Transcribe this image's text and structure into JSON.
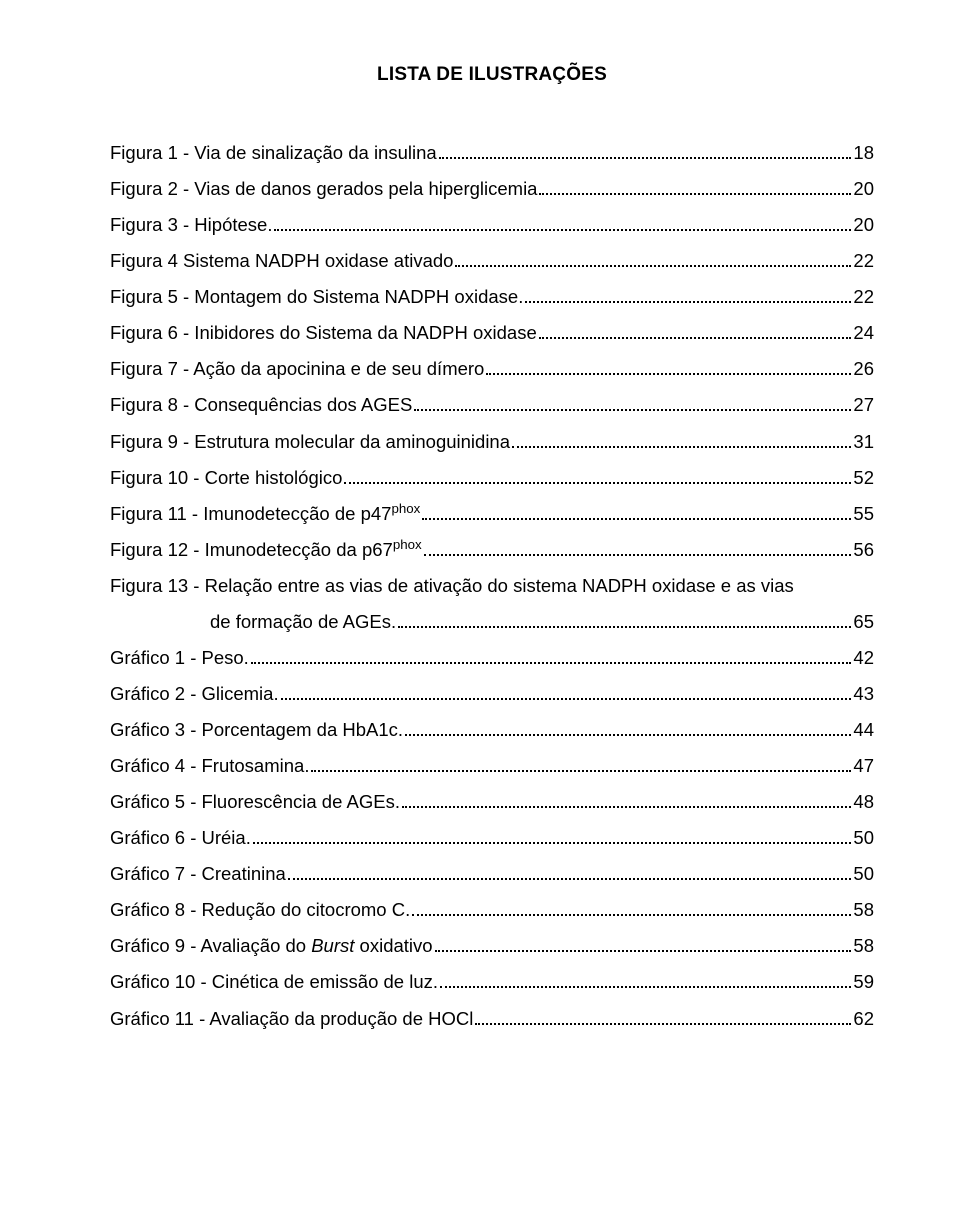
{
  "title": "LISTA DE ILUSTRAÇÕES",
  "entries": [
    {
      "label": "Figura 1 -  Via de sinalização da insulina",
      "page": "18"
    },
    {
      "label": "Figura 2 -  Vias de danos gerados pela hiperglicemia",
      "page": "20"
    },
    {
      "label": "Figura 3 -  Hipótese.",
      "page": "20"
    },
    {
      "label": "Figura 4   Sistema NADPH oxidase ativado",
      "page": "22"
    },
    {
      "label": "Figura 5 -  Montagem do Sistema NADPH oxidase.",
      "page": "22"
    },
    {
      "label": "Figura 6 -  Inibidores do Sistema da NADPH oxidase",
      "page": "24"
    },
    {
      "label": "Figura 7 -  Ação da apocinina e de seu dímero",
      "page": "26"
    },
    {
      "label": "Figura 8 -  Consequências dos AGES",
      "page": "27"
    },
    {
      "label": "Figura 9 -  Estrutura molecular da aminoguinidina",
      "page": "31"
    },
    {
      "label": "Figura 10 - Corte histológico",
      "page": "52"
    },
    {
      "label": "Figura 11 - Imunodetecção de p47",
      "sup": "phox",
      "page": "55"
    },
    {
      "label": "Figura 12 - Imunodetecção da p67",
      "sup": "phox",
      "page": "56"
    },
    {
      "label": "Figura 13 - Relação entre as vias de ativação do sistema NADPH oxidase e as vias",
      "page": ""
    },
    {
      "cont": true,
      "label": "de formação de AGEs. ",
      "page": "65"
    },
    {
      "label": "Gráfico 1 -  Peso. ",
      "page": "42"
    },
    {
      "label": "Gráfico 2 -  Glicemia.",
      "page": "43"
    },
    {
      "label": "Gráfico 3 -  Porcentagem da HbA1c.",
      "page": "44"
    },
    {
      "label": "Gráfico 4 -  Frutosamina.",
      "page": "47"
    },
    {
      "label": "Gráfico 5 -  Fluorescência de AGEs. ",
      "page": "48"
    },
    {
      "label": "Gráfico 6 -  Uréia. ",
      "page": "50"
    },
    {
      "label": "Gráfico 7 -  Creatinina",
      "page": "50"
    },
    {
      "label": "Gráfico 8 -  Redução do citocromo C. ",
      "page": "58"
    },
    {
      "label": "Gráfico 9 -   Avaliação do ",
      "italic_tail": "Burst",
      "after_italic": " oxidativo",
      "page": "58"
    },
    {
      "label": "Gráfico 10 - Cinética de emissão de luz. ",
      "page": "59"
    },
    {
      "label": "Gráfico 11 - Avaliação da produção de HOCl",
      "page": "62"
    }
  ]
}
